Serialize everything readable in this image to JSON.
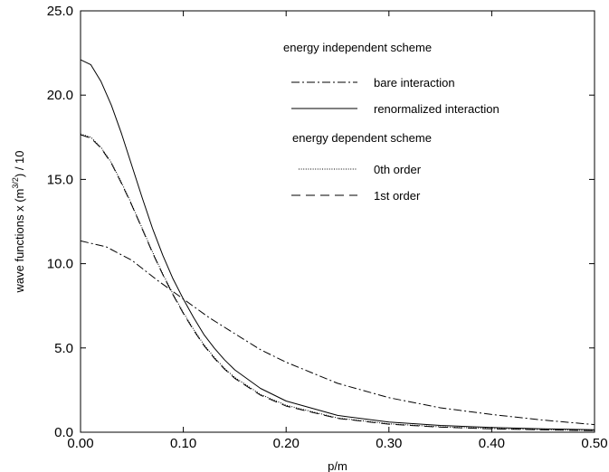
{
  "chart_data": {
    "type": "line",
    "xlabel": "p/m",
    "ylabel": "wave functions x (m",
    "ylabel_sup": "3/2",
    "ylabel_tail": ") / 10",
    "xlim": [
      0.0,
      0.5
    ],
    "ylim": [
      0.0,
      25.0
    ],
    "x_ticks": [
      "0.00",
      "0.10",
      "0.20",
      "0.30",
      "0.40",
      "0.50"
    ],
    "y_ticks": [
      "0.0",
      "5.0",
      "10.0",
      "15.0",
      "20.0",
      "25.0"
    ],
    "grid": false,
    "legend": {
      "position": "top-right",
      "headers": [
        "energy independent scheme",
        "energy dependent scheme"
      ]
    },
    "series": [
      {
        "name": "bare interaction",
        "group": "energy independent scheme",
        "style": "dashdot",
        "x": [
          0.0,
          0.025,
          0.05,
          0.075,
          0.1,
          0.125,
          0.15,
          0.175,
          0.2,
          0.25,
          0.3,
          0.35,
          0.4,
          0.45,
          0.5
        ],
        "y": [
          11.35,
          11.0,
          10.2,
          9.0,
          7.9,
          6.8,
          5.85,
          4.9,
          4.15,
          2.9,
          2.05,
          1.45,
          1.05,
          0.72,
          0.45
        ]
      },
      {
        "name": "renormalized interaction",
        "group": "energy independent scheme",
        "style": "solid",
        "x": [
          0.0,
          0.01,
          0.02,
          0.03,
          0.04,
          0.05,
          0.06,
          0.07,
          0.08,
          0.09,
          0.1,
          0.11,
          0.12,
          0.13,
          0.14,
          0.15,
          0.175,
          0.2,
          0.25,
          0.3,
          0.35,
          0.4,
          0.45,
          0.5
        ],
        "y": [
          22.1,
          21.8,
          20.8,
          19.4,
          17.7,
          15.8,
          13.9,
          12.1,
          10.5,
          9.1,
          7.9,
          6.8,
          5.8,
          5.0,
          4.3,
          3.7,
          2.6,
          1.85,
          1.0,
          0.6,
          0.4,
          0.28,
          0.2,
          0.15
        ]
      },
      {
        "name": "0th order",
        "group": "energy dependent scheme",
        "style": "dotted",
        "x": [
          0.0,
          0.01,
          0.02,
          0.03,
          0.04,
          0.05,
          0.06,
          0.07,
          0.08,
          0.09,
          0.1,
          0.11,
          0.12,
          0.13,
          0.14,
          0.15,
          0.175,
          0.2,
          0.25,
          0.3,
          0.35,
          0.4,
          0.45,
          0.5
        ],
        "y": [
          17.7,
          17.5,
          16.9,
          16.0,
          14.8,
          13.5,
          12.1,
          10.7,
          9.4,
          8.2,
          7.1,
          6.1,
          5.2,
          4.45,
          3.8,
          3.25,
          2.25,
          1.6,
          0.85,
          0.5,
          0.32,
          0.22,
          0.15,
          0.1
        ]
      },
      {
        "name": "1st order",
        "group": "energy dependent scheme",
        "style": "dashed",
        "x": [
          0.0,
          0.01,
          0.02,
          0.03,
          0.04,
          0.05,
          0.06,
          0.07,
          0.08,
          0.09,
          0.1,
          0.11,
          0.12,
          0.13,
          0.14,
          0.15,
          0.175,
          0.2,
          0.25,
          0.3,
          0.35,
          0.4,
          0.45,
          0.5
        ],
        "y": [
          17.65,
          17.45,
          16.85,
          15.95,
          14.75,
          13.45,
          12.05,
          10.65,
          9.35,
          8.15,
          7.05,
          6.05,
          5.15,
          4.4,
          3.75,
          3.2,
          2.2,
          1.55,
          0.82,
          0.48,
          0.3,
          0.2,
          0.14,
          0.09
        ]
      }
    ]
  }
}
